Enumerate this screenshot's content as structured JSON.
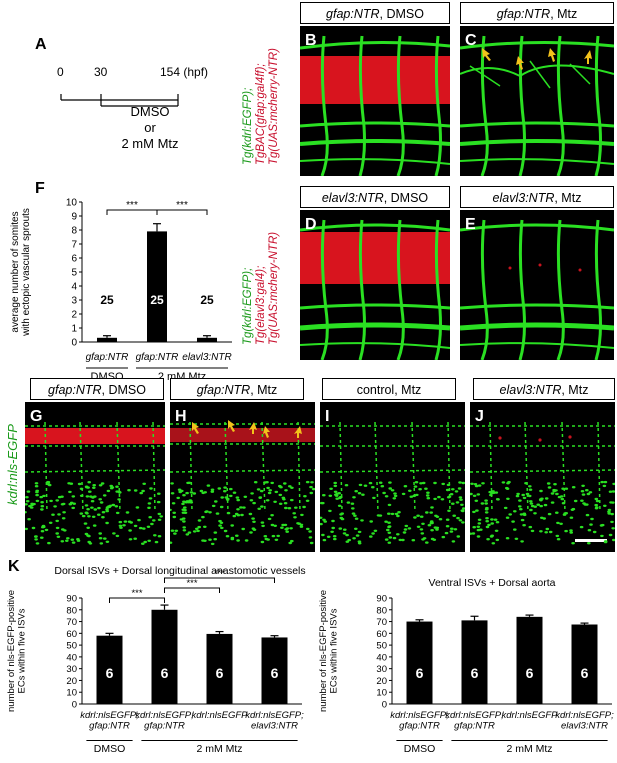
{
  "panel_letters": {
    "a": "A",
    "b": "B",
    "c": "C",
    "d": "D",
    "e": "E",
    "f": "F",
    "g": "G",
    "h": "H",
    "i": "I",
    "j": "J",
    "k": "K"
  },
  "timeline": {
    "t0": "0",
    "t1": "30",
    "t2": "154 (hpf)",
    "line1": "DMSO",
    "line2": "or",
    "line3": "2 mM Mtz"
  },
  "headers": {
    "b": {
      "gene": "gfap:NTR",
      "rest": ", DMSO"
    },
    "c": {
      "gene": "gfap:NTR",
      "rest": ", Mtz"
    },
    "d": {
      "gene": "elavl3:NTR",
      "rest": ", DMSO"
    },
    "e": {
      "gene": "elavl3:NTR",
      "rest": ", Mtz"
    },
    "g": {
      "gene": "gfap:NTR",
      "rest": ", DMSO"
    },
    "h": {
      "gene": "gfap:NTR",
      "rest": ", Mtz"
    },
    "i": {
      "gene": "",
      "rest": "control, Mtz"
    },
    "j": {
      "gene": "elavl3:NTR",
      "rest": ", Mtz"
    }
  },
  "side_labels": {
    "top_line1": "Tg(kdrl:EGFP);",
    "top_line2": "TgBAC(gfap:gal4ff);",
    "top_line3": "Tg(UAS:mcherry-NTR)",
    "mid_line1": "Tg(kdrl:EGFP);",
    "mid_line2": "Tg(elavl3:gal4);",
    "mid_line3": "Tg(UAS:mchery-NTR)",
    "bottom": "kdrl:nls-EGFP"
  },
  "colors": {
    "egfp": "#22d81e",
    "mcherry": "#e8141e",
    "arrow": "#f2c21b",
    "bar": "#000000"
  },
  "chart_data": [
    {
      "type": "bar",
      "panel": "F",
      "ylabel_line1": "average number of somites",
      "ylabel_line2": "with ectopic vascular sprouts",
      "categories": [
        "gfap:NTR",
        "gfap:NTR",
        "elavl3:NTR"
      ],
      "values": [
        0.3,
        7.9,
        0.3
      ],
      "errors": [
        0.15,
        0.55,
        0.15
      ],
      "n": [
        "25",
        "25",
        "25"
      ],
      "ylim": [
        0,
        10
      ],
      "yticks": [
        "0",
        "1",
        "2",
        "3",
        "4",
        "5",
        "6",
        "7",
        "8",
        "9",
        "10"
      ],
      "groups": [
        {
          "label": "DMSO",
          "span": [
            0,
            0
          ]
        },
        {
          "label": "2 mM Mtz",
          "span": [
            1,
            2
          ]
        }
      ],
      "significance": [
        {
          "from": 0,
          "to": 1,
          "label": "***"
        },
        {
          "from": 1,
          "to": 2,
          "label": "***"
        }
      ]
    },
    {
      "type": "bar",
      "panel": "K",
      "title": "Dorsal ISVs + Dorsal longitudinal anastomotic vessels",
      "ylabel_line1": "number of nls-EGFP-positive",
      "ylabel_line2": "ECs within five ISVs",
      "categories": [
        [
          "kdrl:nlsEGFP;",
          "gfap:NTR"
        ],
        [
          "kdrl:nlsEGFP;",
          "gfap:NTR"
        ],
        [
          "kdrl:nlsEGFP",
          ""
        ],
        [
          "kdrl:nlsEGFP;",
          "elavl3:NTR"
        ]
      ],
      "values": [
        58,
        80,
        59.5,
        56.5
      ],
      "errors": [
        2,
        4,
        2,
        1.5
      ],
      "n": [
        "6",
        "6",
        "6",
        "6"
      ],
      "ylim": [
        0,
        90
      ],
      "yticks": [
        "0",
        "10",
        "20",
        "30",
        "40",
        "50",
        "60",
        "70",
        "80",
        "90"
      ],
      "groups": [
        {
          "label": "DMSO",
          "span": [
            0,
            0
          ]
        },
        {
          "label": "2 mM Mtz",
          "span": [
            1,
            3
          ]
        }
      ],
      "significance": [
        {
          "from": 0,
          "to": 1,
          "label": "***"
        },
        {
          "from": 1,
          "to": 2,
          "label": "***"
        },
        {
          "from": 1,
          "to": 3,
          "label": "***"
        }
      ]
    },
    {
      "type": "bar",
      "panel": "K",
      "title": "Ventral ISVs + Dorsal aorta",
      "ylabel_line1": "number of nls-EGFP-positive",
      "ylabel_line2": "ECs within five ISVs",
      "categories": [
        [
          "kdrl:nlsEGFP;",
          "gfap:NTR"
        ],
        [
          "kdrl:nlsEGFP;",
          "gfap:NTR"
        ],
        [
          "kdrl:nlsEGFP",
          ""
        ],
        [
          "kdrl:nlsEGFP;",
          "elavl3:NTR"
        ]
      ],
      "values": [
        70,
        71,
        74,
        67.5
      ],
      "errors": [
        1.5,
        3.5,
        1.5,
        1.2
      ],
      "n": [
        "6",
        "6",
        "6",
        "6"
      ],
      "ylim": [
        0,
        90
      ],
      "yticks": [
        "0",
        "10",
        "20",
        "30",
        "40",
        "50",
        "60",
        "70",
        "80",
        "90"
      ],
      "groups": [
        {
          "label": "DMSO",
          "span": [
            0,
            0
          ]
        },
        {
          "label": "2 mM Mtz",
          "span": [
            1,
            3
          ]
        }
      ],
      "significance": []
    }
  ]
}
